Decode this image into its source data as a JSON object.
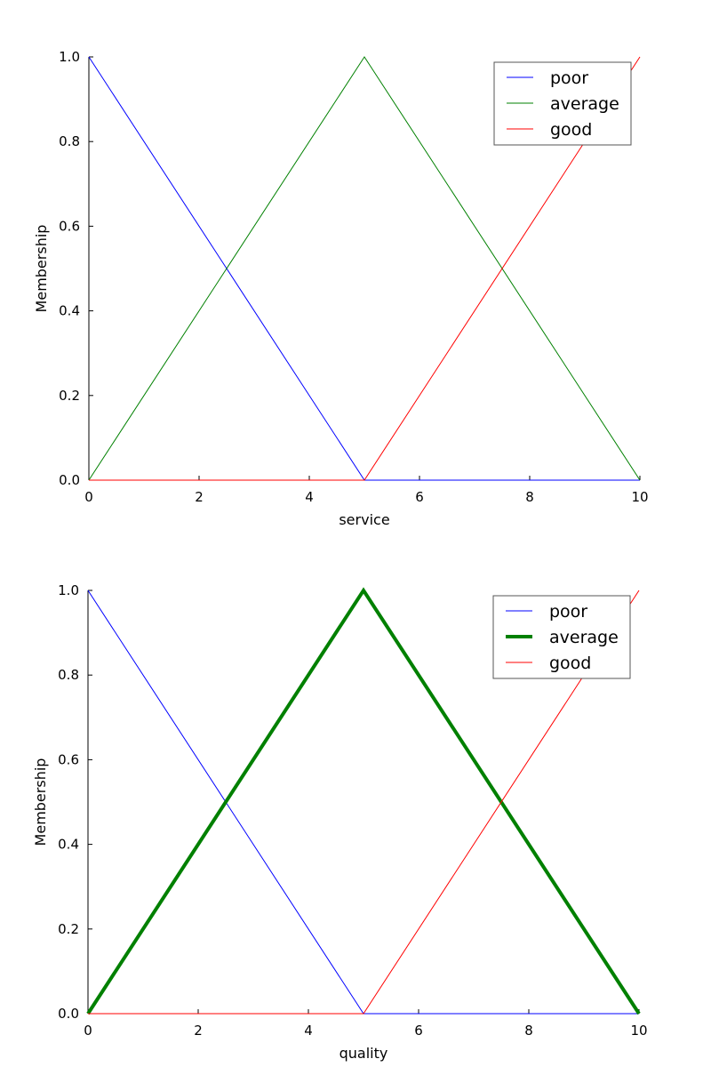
{
  "chart_data": [
    {
      "type": "line",
      "title": "",
      "xlabel": "service",
      "ylabel": "Membership",
      "xlim": [
        0,
        10
      ],
      "ylim": [
        0.0,
        1.0
      ],
      "xticks": [
        "0",
        "2",
        "4",
        "6",
        "8",
        "10"
      ],
      "yticks": [
        "0.0",
        "0.2",
        "0.4",
        "0.6",
        "0.8",
        "1.0"
      ],
      "grid": false,
      "legend_position": "top-right",
      "series": [
        {
          "name": "poor",
          "color": "#0000ff",
          "linewidth": 1,
          "x": [
            0,
            5,
            10
          ],
          "y": [
            1.0,
            0.0,
            0.0
          ]
        },
        {
          "name": "average",
          "color": "#008000",
          "linewidth": 1,
          "x": [
            0,
            5,
            10
          ],
          "y": [
            0.0,
            1.0,
            0.0
          ]
        },
        {
          "name": "good",
          "color": "#ff0000",
          "linewidth": 1,
          "x": [
            0,
            5,
            10
          ],
          "y": [
            0.0,
            0.0,
            1.0
          ]
        }
      ]
    },
    {
      "type": "line",
      "title": "",
      "xlabel": "quality",
      "ylabel": "Membership",
      "xlim": [
        0,
        10
      ],
      "ylim": [
        0.0,
        1.0
      ],
      "xticks": [
        "0",
        "2",
        "4",
        "6",
        "8",
        "10"
      ],
      "yticks": [
        "0.0",
        "0.2",
        "0.4",
        "0.6",
        "0.8",
        "1.0"
      ],
      "grid": false,
      "legend_position": "top-right",
      "series": [
        {
          "name": "poor",
          "color": "#0000ff",
          "linewidth": 1,
          "x": [
            0,
            5,
            10
          ],
          "y": [
            1.0,
            0.0,
            0.0
          ]
        },
        {
          "name": "average",
          "color": "#008000",
          "linewidth": 4,
          "x": [
            0,
            5,
            10
          ],
          "y": [
            0.0,
            1.0,
            0.0
          ]
        },
        {
          "name": "good",
          "color": "#ff0000",
          "linewidth": 1,
          "x": [
            0,
            5,
            10
          ],
          "y": [
            0.0,
            0.0,
            1.0
          ]
        }
      ]
    }
  ]
}
